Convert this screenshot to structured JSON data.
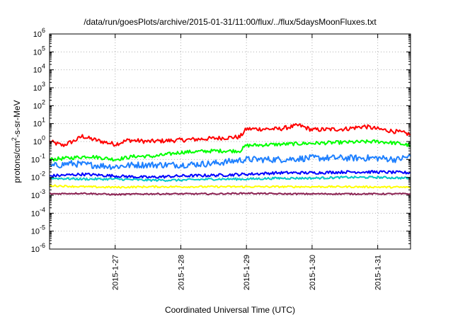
{
  "chart_data": {
    "type": "line",
    "title": "/data/run/goesPlots/archive/2015-01-31/11:00/flux/../flux/5daysMoonFluxes.txt",
    "xlabel": "Coordinated Universal Time (UTC)",
    "ylabel": {
      "base": "protons/cm",
      "sup": "2",
      "rest": "-s-sr-MeV"
    },
    "yscale": "log",
    "ylim_exp": [
      -6,
      6
    ],
    "ytick_exps": [
      -6,
      -5,
      -4,
      -3,
      -2,
      -1,
      0,
      1,
      2,
      3,
      4,
      5,
      6
    ],
    "ytick_base": "10",
    "xlim_days": [
      26.0,
      31.5
    ],
    "xticks": [
      {
        "day": 27,
        "label": "2015-1-27"
      },
      {
        "day": 28,
        "label": "2015-1-28"
      },
      {
        "day": 29,
        "label": "2015-1-29"
      },
      {
        "day": 30,
        "label": "2015-1-30"
      },
      {
        "day": 31,
        "label": "2015-1-31"
      }
    ],
    "grid": true,
    "series": [
      {
        "color": "#ff0000",
        "x": [
          26.0,
          26.2,
          26.4,
          26.5,
          26.6,
          26.8,
          27.0,
          27.2,
          27.5,
          28.0,
          28.5,
          28.9,
          29.0,
          29.5,
          29.8,
          30.0,
          30.5,
          30.8,
          31.0,
          31.3,
          31.5
        ],
        "y": [
          1.0,
          0.6,
          1.2,
          2.0,
          1.5,
          1.0,
          0.7,
          1.2,
          1.0,
          1.2,
          1.5,
          1.8,
          5.0,
          5.0,
          8.0,
          4.5,
          5.0,
          7.0,
          5.0,
          3.5,
          2.5
        ]
      },
      {
        "color": "#00ff00",
        "x": [
          26.0,
          26.3,
          26.6,
          27.0,
          27.3,
          27.6,
          28.0,
          28.5,
          28.9,
          29.0,
          29.5,
          30.0,
          30.5,
          31.0,
          31.3,
          31.5
        ],
        "y": [
          0.1,
          0.12,
          0.15,
          0.1,
          0.15,
          0.15,
          0.25,
          0.3,
          0.3,
          0.6,
          0.7,
          0.8,
          0.9,
          1.0,
          0.8,
          0.6
        ]
      },
      {
        "color": "#1e80ff",
        "x": [
          26.0,
          26.3,
          26.6,
          27.0,
          27.3,
          27.6,
          28.0,
          28.5,
          29.0,
          29.5,
          30.0,
          30.5,
          31.0,
          31.3,
          31.5
        ],
        "y": [
          0.04,
          0.06,
          0.05,
          0.04,
          0.05,
          0.05,
          0.05,
          0.06,
          0.1,
          0.1,
          0.12,
          0.12,
          0.12,
          0.1,
          0.15
        ]
      },
      {
        "color": "#0000ff",
        "x": [
          26.0,
          26.5,
          27.0,
          27.5,
          28.0,
          28.5,
          29.0,
          29.5,
          30.0,
          30.5,
          31.0,
          31.5
        ],
        "y": [
          0.012,
          0.015,
          0.012,
          0.01,
          0.012,
          0.013,
          0.015,
          0.018,
          0.018,
          0.02,
          0.02,
          0.018
        ]
      },
      {
        "color": "#00c8c8",
        "x": [
          26.0,
          26.5,
          27.0,
          27.5,
          28.0,
          28.5,
          29.0,
          29.5,
          30.0,
          30.5,
          31.0,
          31.5
        ],
        "y": [
          0.009,
          0.008,
          0.008,
          0.007,
          0.007,
          0.008,
          0.008,
          0.009,
          0.009,
          0.01,
          0.01,
          0.009
        ]
      },
      {
        "color": "#ffff00",
        "x": [
          26.0,
          26.5,
          27.0,
          27.5,
          28.0,
          28.5,
          29.0,
          29.5,
          30.0,
          30.5,
          31.0,
          31.5
        ],
        "y": [
          0.0035,
          0.003,
          0.0028,
          0.003,
          0.003,
          0.003,
          0.003,
          0.003,
          0.003,
          0.003,
          0.0029,
          0.0028
        ]
      },
      {
        "color": "#8b2252",
        "x": [
          26.0,
          26.5,
          27.0,
          27.5,
          28.0,
          28.5,
          29.0,
          29.5,
          30.0,
          30.5,
          31.0,
          31.5
        ],
        "y": [
          0.0012,
          0.0013,
          0.0011,
          0.0012,
          0.0012,
          0.0012,
          0.0013,
          0.0012,
          0.0012,
          0.0012,
          0.0012,
          0.0012
        ]
      }
    ]
  }
}
